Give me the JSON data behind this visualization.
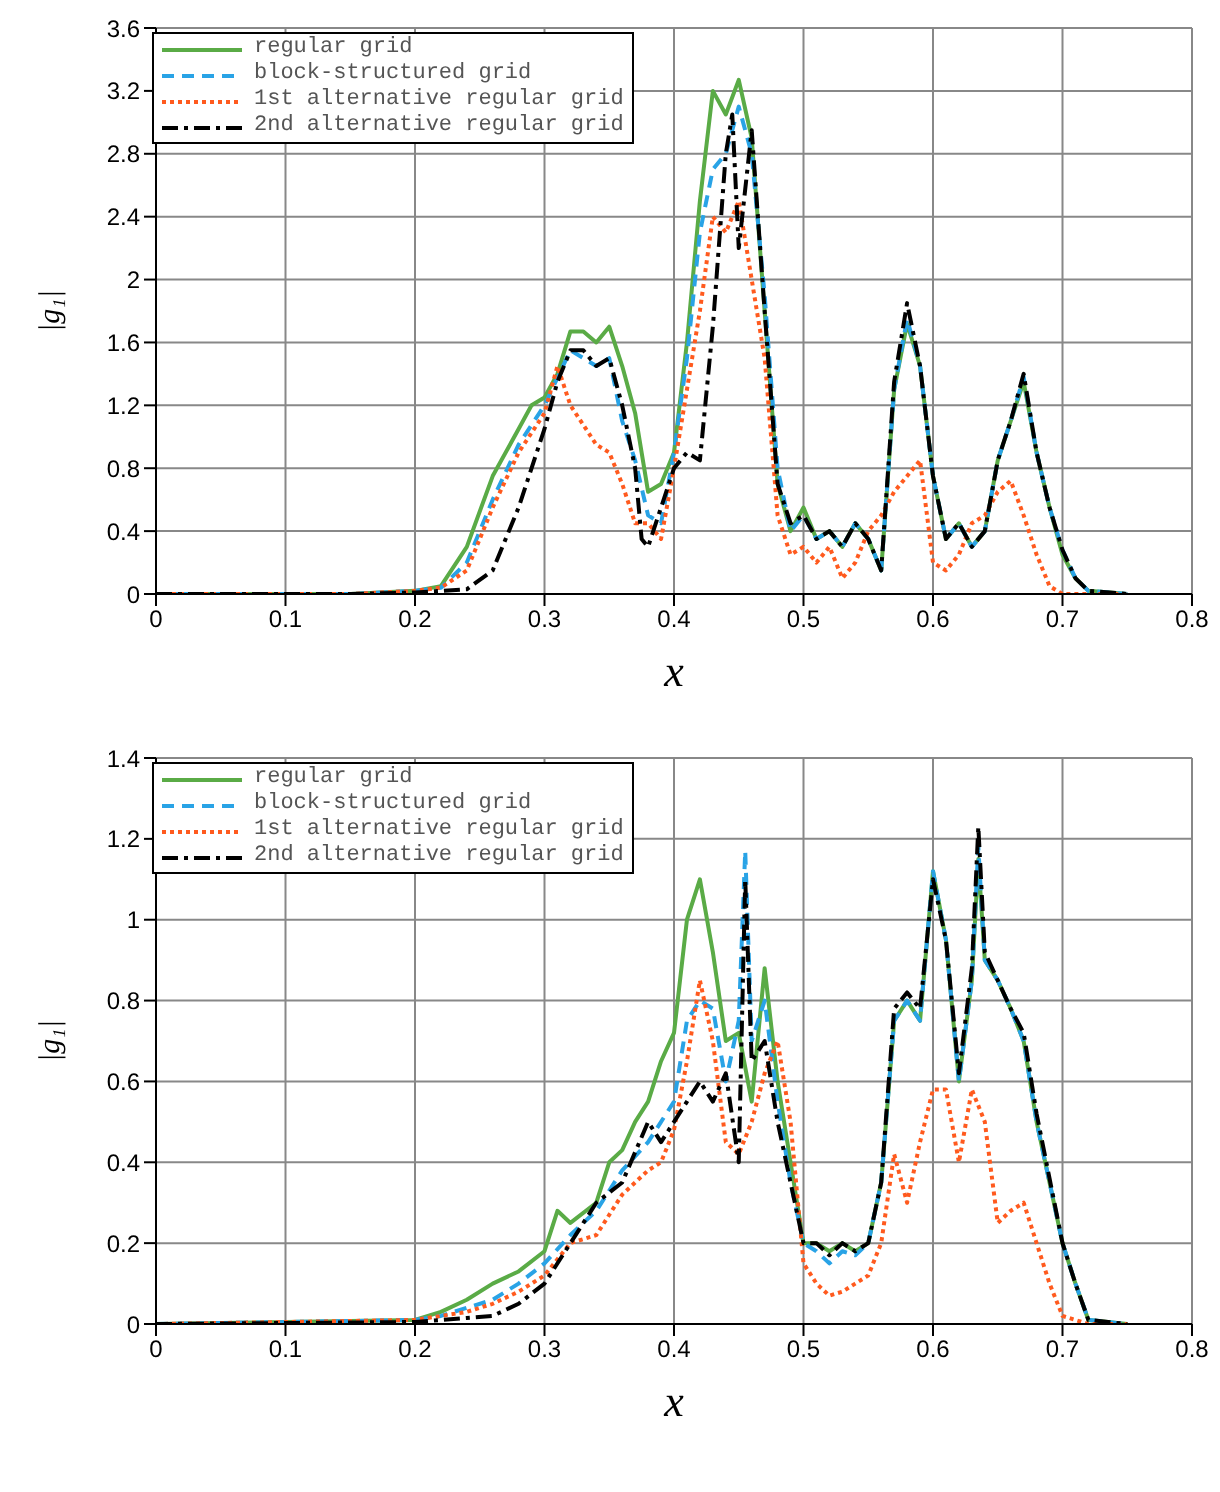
{
  "chart_data": [
    {
      "type": "line",
      "xlabel": "x",
      "ylabel": "|g₁|",
      "xlim": [
        0,
        0.8
      ],
      "ylim": [
        0,
        3.6
      ],
      "xticks": [
        0,
        0.1,
        0.2,
        0.3,
        0.4,
        0.5,
        0.6,
        0.7,
        0.8
      ],
      "yticks": [
        0,
        0.4,
        0.8,
        1.2,
        1.6,
        2,
        2.4,
        2.8,
        3.2,
        3.6
      ],
      "grid": true,
      "legend": "top left",
      "marker": "none",
      "series": [
        {
          "name": "regular grid",
          "color": "#5aab46",
          "line_style": "solid",
          "x": [
            0,
            0.15,
            0.2,
            0.22,
            0.24,
            0.26,
            0.28,
            0.29,
            0.3,
            0.31,
            0.32,
            0.33,
            0.34,
            0.35,
            0.36,
            0.37,
            0.38,
            0.39,
            0.4,
            0.41,
            0.42,
            0.43,
            0.44,
            0.45,
            0.46,
            0.47,
            0.48,
            0.49,
            0.5,
            0.51,
            0.52,
            0.53,
            0.54,
            0.55,
            0.56,
            0.57,
            0.58,
            0.59,
            0.6,
            0.61,
            0.62,
            0.63,
            0.64,
            0.65,
            0.66,
            0.67,
            0.68,
            0.69,
            0.7,
            0.71,
            0.72,
            0.75
          ],
          "values": [
            0,
            0,
            0.02,
            0.05,
            0.3,
            0.75,
            1.05,
            1.2,
            1.25,
            1.4,
            1.67,
            1.67,
            1.6,
            1.7,
            1.45,
            1.15,
            0.65,
            0.7,
            0.9,
            1.6,
            2.5,
            3.2,
            3.05,
            3.27,
            2.9,
            1.8,
            0.7,
            0.4,
            0.55,
            0.35,
            0.4,
            0.3,
            0.45,
            0.35,
            0.15,
            1.3,
            1.72,
            1.45,
            0.75,
            0.35,
            0.45,
            0.3,
            0.4,
            0.85,
            1.1,
            1.35,
            0.9,
            0.55,
            0.25,
            0.1,
            0.02,
            0
          ]
        },
        {
          "name": "block-structured grid",
          "color": "#29a3e6",
          "line_style": "dashed",
          "x": [
            0,
            0.15,
            0.2,
            0.22,
            0.24,
            0.26,
            0.28,
            0.3,
            0.32,
            0.34,
            0.35,
            0.36,
            0.37,
            0.38,
            0.39,
            0.4,
            0.41,
            0.42,
            0.43,
            0.44,
            0.45,
            0.46,
            0.47,
            0.48,
            0.49,
            0.5,
            0.51,
            0.52,
            0.53,
            0.54,
            0.55,
            0.56,
            0.57,
            0.58,
            0.59,
            0.6,
            0.61,
            0.62,
            0.63,
            0.64,
            0.65,
            0.66,
            0.67,
            0.68,
            0.69,
            0.7,
            0.71,
            0.72,
            0.75
          ],
          "values": [
            0,
            0,
            0.02,
            0.04,
            0.2,
            0.6,
            0.95,
            1.2,
            1.55,
            1.45,
            1.5,
            1.1,
            0.85,
            0.5,
            0.45,
            0.9,
            1.5,
            2.3,
            2.7,
            2.8,
            3.1,
            2.8,
            1.9,
            0.8,
            0.4,
            0.5,
            0.35,
            0.4,
            0.3,
            0.45,
            0.35,
            0.15,
            1.3,
            1.75,
            1.45,
            0.75,
            0.35,
            0.45,
            0.3,
            0.4,
            0.85,
            1.1,
            1.38,
            0.9,
            0.55,
            0.28,
            0.1,
            0.02,
            0
          ]
        },
        {
          "name": "1st alternative regular grid",
          "color": "#ff5a1e",
          "line_style": "dotted",
          "x": [
            0,
            0.15,
            0.2,
            0.22,
            0.24,
            0.26,
            0.28,
            0.3,
            0.31,
            0.32,
            0.34,
            0.35,
            0.36,
            0.37,
            0.38,
            0.39,
            0.4,
            0.41,
            0.42,
            0.43,
            0.44,
            0.45,
            0.46,
            0.47,
            0.48,
            0.49,
            0.5,
            0.51,
            0.52,
            0.53,
            0.54,
            0.55,
            0.56,
            0.57,
            0.58,
            0.59,
            0.6,
            0.61,
            0.62,
            0.63,
            0.64,
            0.65,
            0.66,
            0.67,
            0.68,
            0.69,
            0.7,
            0.75
          ],
          "values": [
            0,
            0,
            0.02,
            0.04,
            0.15,
            0.55,
            0.9,
            1.15,
            1.45,
            1.2,
            0.95,
            0.9,
            0.7,
            0.45,
            0.45,
            0.35,
            0.8,
            1.3,
            1.8,
            2.4,
            2.3,
            2.5,
            2,
            1.5,
            0.5,
            0.25,
            0.3,
            0.2,
            0.3,
            0.1,
            0.2,
            0.4,
            0.5,
            0.65,
            0.75,
            0.85,
            0.2,
            0.15,
            0.25,
            0.45,
            0.5,
            0.65,
            0.72,
            0.5,
            0.25,
            0.05,
            0,
            0
          ]
        },
        {
          "name": "2nd alternative regular grid",
          "color": "#000000",
          "line_style": "dashdot",
          "x": [
            0,
            0.15,
            0.2,
            0.22,
            0.24,
            0.26,
            0.28,
            0.3,
            0.31,
            0.32,
            0.33,
            0.34,
            0.35,
            0.36,
            0.37,
            0.375,
            0.38,
            0.39,
            0.4,
            0.41,
            0.42,
            0.43,
            0.44,
            0.445,
            0.45,
            0.46,
            0.47,
            0.48,
            0.49,
            0.5,
            0.51,
            0.52,
            0.53,
            0.54,
            0.55,
            0.56,
            0.57,
            0.58,
            0.59,
            0.6,
            0.61,
            0.62,
            0.63,
            0.64,
            0.65,
            0.66,
            0.67,
            0.68,
            0.69,
            0.7,
            0.71,
            0.72,
            0.75
          ],
          "values": [
            0,
            0,
            0.01,
            0.02,
            0.03,
            0.15,
            0.55,
            1.05,
            1.35,
            1.55,
            1.55,
            1.45,
            1.5,
            1.2,
            0.8,
            0.35,
            0.3,
            0.55,
            0.8,
            0.9,
            0.85,
            1.7,
            2.8,
            3.05,
            2.2,
            2.95,
            1.8,
            0.7,
            0.45,
            0.5,
            0.35,
            0.4,
            0.3,
            0.45,
            0.35,
            0.15,
            1.35,
            1.85,
            1.45,
            0.75,
            0.35,
            0.45,
            0.3,
            0.4,
            0.85,
            1.1,
            1.4,
            0.9,
            0.55,
            0.28,
            0.1,
            0.02,
            0
          ]
        }
      ]
    },
    {
      "type": "line",
      "xlabel": "x",
      "ylabel": "|g₁|",
      "xlim": [
        0,
        0.8
      ],
      "ylim": [
        0,
        1.4
      ],
      "xticks": [
        0,
        0.1,
        0.2,
        0.3,
        0.4,
        0.5,
        0.6,
        0.7,
        0.8
      ],
      "yticks": [
        0,
        0.2,
        0.4,
        0.6,
        0.8,
        1,
        1.2,
        1.4
      ],
      "grid": true,
      "legend": "top left",
      "marker": "none",
      "series": [
        {
          "name": "regular grid",
          "color": "#5aab46",
          "line_style": "solid",
          "x": [
            0,
            0.2,
            0.22,
            0.24,
            0.26,
            0.28,
            0.3,
            0.31,
            0.32,
            0.34,
            0.35,
            0.36,
            0.37,
            0.38,
            0.39,
            0.4,
            0.41,
            0.42,
            0.43,
            0.44,
            0.45,
            0.46,
            0.47,
            0.48,
            0.49,
            0.5,
            0.51,
            0.52,
            0.53,
            0.54,
            0.55,
            0.56,
            0.57,
            0.58,
            0.59,
            0.6,
            0.61,
            0.62,
            0.63,
            0.635,
            0.64,
            0.65,
            0.66,
            0.67,
            0.68,
            0.69,
            0.7,
            0.71,
            0.72,
            0.75
          ],
          "values": [
            0,
            0.01,
            0.03,
            0.06,
            0.1,
            0.13,
            0.18,
            0.28,
            0.25,
            0.3,
            0.4,
            0.43,
            0.5,
            0.55,
            0.65,
            0.72,
            1,
            1.1,
            0.92,
            0.7,
            0.72,
            0.55,
            0.88,
            0.6,
            0.4,
            0.2,
            0.2,
            0.18,
            0.2,
            0.18,
            0.2,
            0.35,
            0.75,
            0.8,
            0.75,
            1.12,
            0.95,
            0.6,
            0.85,
            1.15,
            0.9,
            0.85,
            0.78,
            0.7,
            0.5,
            0.35,
            0.2,
            0.1,
            0.01,
            0
          ]
        },
        {
          "name": "block-structured grid",
          "color": "#29a3e6",
          "line_style": "dashed",
          "x": [
            0,
            0.2,
            0.22,
            0.24,
            0.26,
            0.28,
            0.3,
            0.32,
            0.34,
            0.36,
            0.38,
            0.39,
            0.4,
            0.41,
            0.42,
            0.43,
            0.44,
            0.45,
            0.455,
            0.46,
            0.47,
            0.48,
            0.49,
            0.5,
            0.51,
            0.52,
            0.53,
            0.54,
            0.55,
            0.56,
            0.57,
            0.58,
            0.59,
            0.6,
            0.61,
            0.62,
            0.63,
            0.635,
            0.64,
            0.65,
            0.66,
            0.67,
            0.68,
            0.69,
            0.7,
            0.71,
            0.72,
            0.75
          ],
          "values": [
            0,
            0.01,
            0.02,
            0.04,
            0.06,
            0.1,
            0.15,
            0.22,
            0.28,
            0.38,
            0.45,
            0.5,
            0.55,
            0.75,
            0.8,
            0.78,
            0.6,
            0.75,
            1.17,
            0.7,
            0.8,
            0.55,
            0.35,
            0.2,
            0.18,
            0.15,
            0.18,
            0.17,
            0.2,
            0.35,
            0.75,
            0.8,
            0.75,
            1.12,
            0.95,
            0.6,
            0.85,
            1.18,
            0.9,
            0.85,
            0.78,
            0.7,
            0.5,
            0.35,
            0.2,
            0.1,
            0.01,
            0
          ]
        },
        {
          "name": "1st alternative regular grid",
          "color": "#ff5a1e",
          "line_style": "dotted",
          "x": [
            0,
            0.2,
            0.22,
            0.24,
            0.26,
            0.28,
            0.3,
            0.32,
            0.34,
            0.36,
            0.38,
            0.39,
            0.4,
            0.41,
            0.42,
            0.43,
            0.44,
            0.45,
            0.46,
            0.47,
            0.48,
            0.49,
            0.5,
            0.51,
            0.52,
            0.53,
            0.54,
            0.55,
            0.56,
            0.57,
            0.58,
            0.59,
            0.6,
            0.61,
            0.62,
            0.63,
            0.64,
            0.65,
            0.66,
            0.67,
            0.68,
            0.69,
            0.7,
            0.72,
            0.75
          ],
          "values": [
            0,
            0.01,
            0.02,
            0.03,
            0.05,
            0.08,
            0.12,
            0.2,
            0.22,
            0.32,
            0.38,
            0.4,
            0.48,
            0.65,
            0.85,
            0.7,
            0.45,
            0.42,
            0.5,
            0.62,
            0.7,
            0.5,
            0.15,
            0.1,
            0.07,
            0.08,
            0.1,
            0.12,
            0.2,
            0.42,
            0.3,
            0.45,
            0.58,
            0.58,
            0.4,
            0.58,
            0.5,
            0.25,
            0.28,
            0.3,
            0.2,
            0.1,
            0.02,
            0,
            0
          ]
        },
        {
          "name": "2nd alternative regular grid",
          "color": "#000000",
          "line_style": "dashdot",
          "x": [
            0,
            0.2,
            0.22,
            0.24,
            0.26,
            0.28,
            0.3,
            0.32,
            0.34,
            0.36,
            0.38,
            0.39,
            0.4,
            0.41,
            0.42,
            0.43,
            0.44,
            0.45,
            0.455,
            0.46,
            0.47,
            0.48,
            0.49,
            0.5,
            0.51,
            0.52,
            0.53,
            0.54,
            0.55,
            0.56,
            0.57,
            0.58,
            0.59,
            0.6,
            0.61,
            0.62,
            0.63,
            0.635,
            0.64,
            0.65,
            0.66,
            0.67,
            0.68,
            0.69,
            0.7,
            0.71,
            0.72,
            0.75
          ],
          "values": [
            0,
            0.005,
            0.01,
            0.015,
            0.02,
            0.05,
            0.1,
            0.2,
            0.3,
            0.35,
            0.5,
            0.45,
            0.5,
            0.55,
            0.6,
            0.55,
            0.62,
            0.4,
            1.1,
            0.65,
            0.7,
            0.5,
            0.35,
            0.2,
            0.2,
            0.17,
            0.2,
            0.18,
            0.2,
            0.35,
            0.78,
            0.82,
            0.78,
            1.1,
            0.95,
            0.62,
            0.88,
            1.23,
            0.92,
            0.85,
            0.78,
            0.72,
            0.52,
            0.36,
            0.2,
            0.1,
            0.01,
            0
          ]
        }
      ]
    }
  ]
}
